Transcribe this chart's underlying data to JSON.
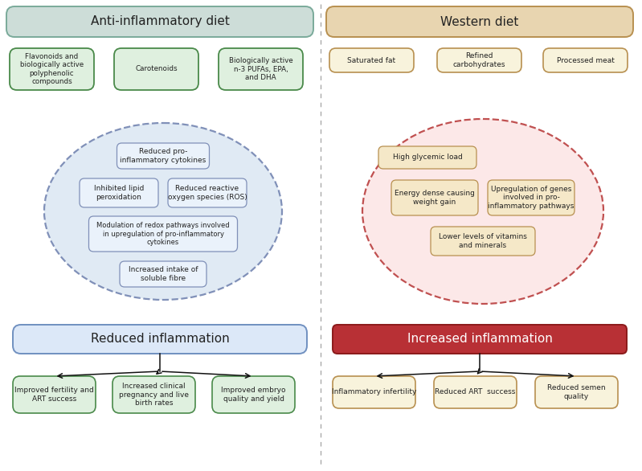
{
  "left_title": "Anti-inflammatory diet",
  "right_title": "Western diet",
  "left_title_bg": "#cdddd8",
  "left_title_border": "#7aaa9a",
  "right_title_bg": "#e8d5b0",
  "right_title_border": "#b89050",
  "left_ingredients": [
    "Flavonoids and\nbiologically active\npolyphenolic\ncompounds",
    "Carotenoids",
    "Biologically active\nn-3 PUFAs, EPA,\nand DHA"
  ],
  "left_ingredients_bg": "#dff0df",
  "left_ingredients_border": "#4a8a4a",
  "right_ingredients": [
    "Saturated fat",
    "Refined\ncarbohydrates",
    "Processed meat"
  ],
  "right_ingredients_bg": "#f8f3dc",
  "right_ingredients_border": "#b89050",
  "left_ellipse_bg": "#e0eaf4",
  "left_ellipse_border": "#8090b8",
  "right_ellipse_bg": "#fce8e8",
  "right_ellipse_border": "#c05050",
  "left_inner_boxes": [
    "Reduced pro-\ninflammatory cytokines",
    "Inhibited lipid\nperoxidation",
    "Reduced reactive\noxygen species (ROS)",
    "Modulation of redox pathways involved\nin upregulation of pro-inflammatory\ncytokines",
    "Increased intake of\nsoluble fibre"
  ],
  "left_inner_bg": "#eaf2fb",
  "left_inner_border": "#8090b8",
  "right_inner_boxes": [
    "High glycemic load",
    "Energy dense causing\nweight gain",
    "Upregulation of genes\ninvolved in pro-\ninflammatory pathways",
    "Lower levels of vitamins\nand minerals"
  ],
  "right_inner_bg": "#f5e8c8",
  "right_inner_border": "#b89050",
  "left_outcome": "Reduced inflammation",
  "left_outcome_bg": "#dce8f8",
  "left_outcome_border": "#7090c0",
  "right_outcome": "Increased inflammation",
  "right_outcome_bg": "#b83035",
  "right_outcome_border": "#8b1a1a",
  "right_outcome_text_color": "#ffffff",
  "left_outcome_text_color": "#222222",
  "left_bottom_boxes": [
    "Improved fertility and\nART success",
    "Increased clinical\npregnancy and live\nbirth rates",
    "Improved embryo\nquality and yield"
  ],
  "left_bottom_bg": "#dff0df",
  "left_bottom_border": "#4a8a4a",
  "right_bottom_boxes": [
    "Inflammatory infertility",
    "Reduced ART  success",
    "Reduced semen\nquality"
  ],
  "right_bottom_bg": "#f8f3dc",
  "right_bottom_border": "#b89050",
  "divider_color": "#aaaaaa",
  "bg_color": "#ffffff",
  "font_size_title": 11,
  "font_size_inner": 6.5,
  "font_size_outcome": 11
}
